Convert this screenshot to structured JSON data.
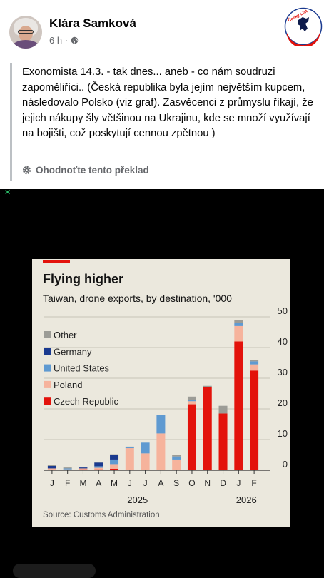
{
  "post": {
    "author": "Klára Samková",
    "time": "6 h",
    "separator": "·",
    "text": "Exonomista 14.3. - tak dnes... aneb - co nám soudruzi zapoměliříci.. (Česká republika byla jejím největším kupcem, následovalo Polsko (viz graf). Zasvěcenci z průmyslu říkají, že jejich nákupy šly většinou na Ukrajinu, kde se množí využívají na bojišti, což poskytují cennou zpětnou )",
    "translate_label": "Ohodnoťte tento překlad",
    "logo_text": "Český List",
    "icons": {
      "audience": "globe-icon",
      "translate": "gear-icon"
    }
  },
  "chart_data": {
    "type": "bar",
    "stacked": true,
    "title": "Flying higher",
    "subtitle": "Taiwan, drone exports, by destination, '000",
    "source": "Source: Customs Administration",
    "categories": [
      "J",
      "F",
      "M",
      "A",
      "M",
      "J",
      "J",
      "A",
      "S",
      "O",
      "N",
      "D",
      "J",
      "F"
    ],
    "year_labels": [
      {
        "label": "2025",
        "at_index": 5.5
      },
      {
        "label": "2026",
        "at_index": 12.5
      }
    ],
    "ylim": [
      0,
      50
    ],
    "yticks": [
      0,
      10,
      20,
      30,
      40,
      50
    ],
    "y_axis_side": "right",
    "grid": true,
    "legend_position": "top-left",
    "series": [
      {
        "name": "Czech Republic",
        "color": "#e3120b",
        "values": [
          0,
          0,
          0.3,
          0.3,
          0.5,
          0,
          0,
          0,
          0,
          21.5,
          27,
          18.5,
          42,
          32.5
        ]
      },
      {
        "name": "Poland",
        "color": "#f6b39c",
        "values": [
          0.6,
          0.3,
          0.3,
          0.5,
          1.5,
          7.2,
          5.5,
          12,
          3.5,
          1,
          0,
          0,
          5,
          2
        ]
      },
      {
        "name": "United States",
        "color": "#5f9ad1",
        "values": [
          0,
          0.3,
          0,
          0.5,
          1.5,
          0.3,
          3.5,
          6,
          1,
          0.5,
          0,
          0,
          1,
          1
        ]
      },
      {
        "name": "Germany",
        "color": "#1a3a8f",
        "values": [
          0.8,
          0,
          0.3,
          1.2,
          1.5,
          0,
          0,
          0,
          0,
          0,
          0,
          0,
          0,
          0
        ]
      },
      {
        "name": "Other",
        "color": "#9c9c96",
        "values": [
          0.3,
          0.3,
          0,
          0.2,
          0.2,
          0.2,
          0,
          0,
          0.5,
          1,
          0.5,
          2.5,
          1,
          0.5
        ]
      }
    ],
    "legend_order": [
      "Other",
      "Germany",
      "United States",
      "Poland",
      "Czech Republic"
    ]
  }
}
